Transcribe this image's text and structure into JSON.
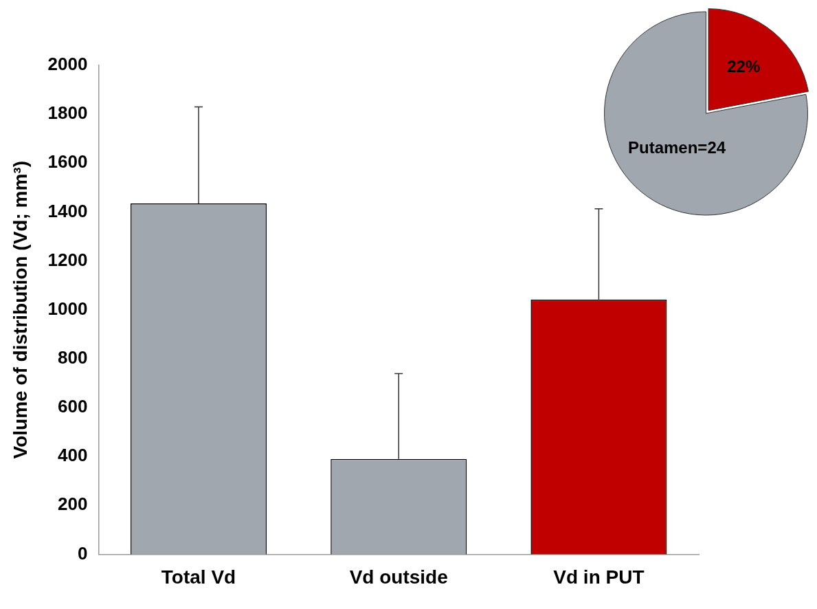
{
  "chart_data": [
    {
      "type": "bar",
      "ylabel": "Volume of distribution (Vd; mm³)",
      "categories": [
        "Total Vd",
        "Vd outside",
        "Vd in PUT"
      ],
      "values": [
        1435,
        390,
        1042
      ],
      "colors": [
        "#a0a7ae",
        "#a0a7ae",
        "#c00000"
      ],
      "errors": [
        [
          1435,
          1830
        ],
        [
          390,
          739
        ],
        [
          1042,
          1413
        ]
      ],
      "ylim": [
        0,
        2000
      ],
      "yticks": [
        0,
        200,
        400,
        600,
        800,
        1000,
        1200,
        1400,
        1600,
        1800,
        2000
      ],
      "grid": false,
      "legend": false
    },
    {
      "type": "pie",
      "categories": [
        null,
        "Putamen=24"
      ],
      "values": [
        22,
        78
      ],
      "colors": [
        "#c00000",
        "#a0a7ae"
      ],
      "value_labels": [
        "22%",
        null
      ],
      "legend": false
    }
  ]
}
